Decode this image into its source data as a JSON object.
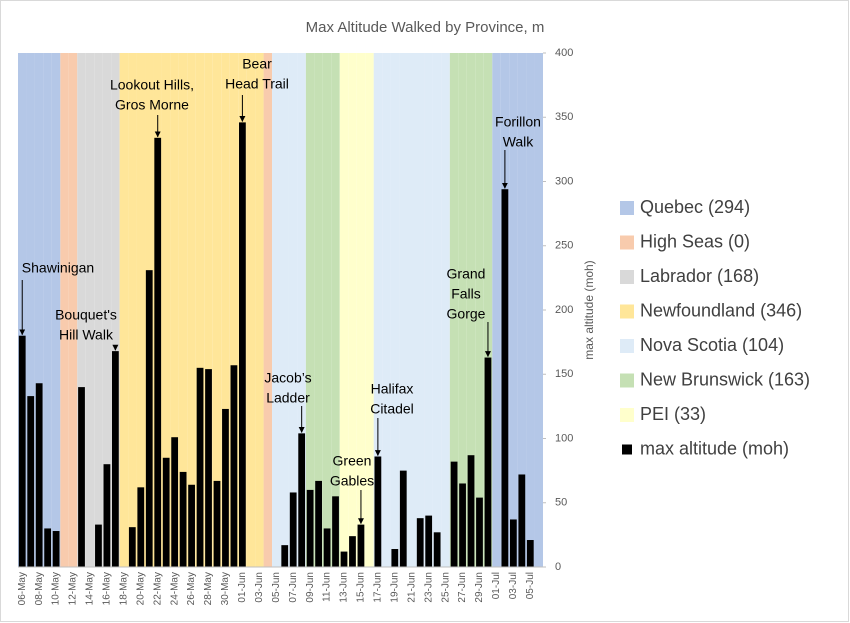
{
  "chart_data": {
    "type": "bar",
    "title": "Max Altitude Walked by Province, m",
    "categories": [
      "06-May",
      null,
      "08-May",
      null,
      "10-May",
      null,
      "12-May",
      null,
      "14-May",
      null,
      "16-May",
      null,
      "18-May",
      null,
      "20-May",
      null,
      "22-May",
      null,
      "24-May",
      null,
      "26-May",
      null,
      "28-May",
      null,
      "30-May",
      null,
      "01-Jun",
      null,
      "03-Jun",
      null,
      "05-Jun",
      null,
      "07-Jun",
      null,
      "09-Jun",
      null,
      "11-Jun",
      null,
      "13-Jun",
      null,
      "15-Jun",
      null,
      "17-Jun",
      null,
      "19-Jun",
      null,
      "21-Jun",
      null,
      "23-Jun",
      null,
      "25-Jun",
      null,
      "27-Jun",
      null,
      "29-Jun",
      null,
      "01-Jul",
      null,
      "03-Jul",
      null,
      "05-Jul",
      null
    ],
    "ylim": [
      0,
      400
    ],
    "y2lim": [
      0,
      400
    ],
    "y2ticks": [
      0,
      50,
      100,
      150,
      200,
      250,
      300,
      350,
      400
    ],
    "y2label": "max altitude (moh)",
    "series": [
      {
        "name": "Quebec (294)",
        "color": "#b4c7e7",
        "values": [
          400,
          400,
          400,
          400,
          400,
          null,
          null,
          null,
          null,
          null,
          null,
          null,
          null,
          null,
          null,
          null,
          null,
          null,
          null,
          null,
          null,
          null,
          null,
          null,
          null,
          null,
          null,
          null,
          null,
          null,
          null,
          null,
          null,
          null,
          null,
          null,
          null,
          null,
          null,
          null,
          null,
          null,
          null,
          null,
          null,
          null,
          null,
          null,
          null,
          null,
          null,
          null,
          null,
          null,
          null,
          null,
          400,
          400,
          400,
          400,
          400,
          400
        ]
      },
      {
        "name": "High Seas (0)",
        "color": "#f8cbad",
        "values": [
          null,
          null,
          null,
          null,
          null,
          400,
          400,
          null,
          null,
          null,
          null,
          null,
          null,
          null,
          null,
          null,
          null,
          null,
          null,
          null,
          null,
          null,
          null,
          null,
          null,
          null,
          null,
          null,
          null,
          400,
          null,
          null,
          null,
          null,
          null,
          null,
          null,
          null,
          null,
          null,
          null,
          null,
          null,
          null,
          null,
          null,
          null,
          null,
          null,
          null,
          null,
          null,
          null,
          null,
          null,
          null,
          null,
          null,
          null,
          null,
          null,
          null
        ]
      },
      {
        "name": "Labrador (168)",
        "color": "#d9d9d9",
        "values": [
          null,
          null,
          null,
          null,
          null,
          null,
          null,
          400,
          400,
          400,
          400,
          400,
          null,
          null,
          null,
          null,
          null,
          null,
          null,
          null,
          null,
          null,
          null,
          null,
          null,
          null,
          null,
          null,
          null,
          null,
          null,
          null,
          null,
          null,
          null,
          null,
          null,
          null,
          null,
          null,
          null,
          null,
          null,
          null,
          null,
          null,
          null,
          null,
          null,
          null,
          null,
          null,
          null,
          null,
          null,
          null,
          null,
          null,
          null,
          null,
          null,
          null
        ]
      },
      {
        "name": "Newfoundland (346)",
        "color": "#ffe699",
        "values": [
          null,
          null,
          null,
          null,
          null,
          null,
          null,
          null,
          null,
          null,
          null,
          null,
          400,
          400,
          400,
          400,
          400,
          400,
          400,
          400,
          400,
          400,
          400,
          400,
          400,
          400,
          400,
          400,
          400,
          null,
          null,
          null,
          null,
          null,
          null,
          null,
          null,
          null,
          null,
          null,
          null,
          null,
          null,
          null,
          null,
          null,
          null,
          null,
          null,
          null,
          null,
          null,
          null,
          null,
          null,
          null,
          null,
          null,
          null,
          null,
          null,
          null
        ]
      },
      {
        "name": "Nova Scotia (104)",
        "color": "#deebf7",
        "values": [
          null,
          null,
          null,
          null,
          null,
          null,
          null,
          null,
          null,
          null,
          null,
          null,
          null,
          null,
          null,
          null,
          null,
          null,
          null,
          null,
          null,
          null,
          null,
          null,
          null,
          null,
          null,
          null,
          null,
          null,
          400,
          400,
          400,
          400,
          null,
          null,
          null,
          null,
          null,
          null,
          null,
          null,
          400,
          400,
          400,
          400,
          400,
          400,
          400,
          400,
          400,
          null,
          null,
          null,
          null,
          null,
          null,
          null,
          null,
          null,
          null,
          null
        ]
      },
      {
        "name": "New Brunswick (163)",
        "color": "#c5e0b4",
        "values": [
          null,
          null,
          null,
          null,
          null,
          null,
          null,
          null,
          null,
          null,
          null,
          null,
          null,
          null,
          null,
          null,
          null,
          null,
          null,
          null,
          null,
          null,
          null,
          null,
          null,
          null,
          null,
          null,
          null,
          null,
          null,
          null,
          null,
          null,
          400,
          400,
          400,
          400,
          null,
          null,
          null,
          null,
          null,
          null,
          null,
          null,
          null,
          null,
          null,
          null,
          null,
          400,
          400,
          400,
          400,
          400,
          null,
          null,
          null,
          null,
          null,
          null
        ]
      },
      {
        "name": "PEI (33)",
        "color": "#ffffcc",
        "values": [
          null,
          null,
          null,
          null,
          null,
          null,
          null,
          null,
          null,
          null,
          null,
          null,
          null,
          null,
          null,
          null,
          null,
          null,
          null,
          null,
          null,
          null,
          null,
          null,
          null,
          null,
          null,
          null,
          null,
          null,
          null,
          null,
          null,
          null,
          null,
          null,
          null,
          null,
          400,
          400,
          400,
          400,
          null,
          null,
          null,
          null,
          null,
          null,
          null,
          null,
          null,
          null,
          null,
          null,
          null,
          null,
          null,
          null,
          null,
          null,
          null,
          null
        ]
      },
      {
        "name": "max altitude (moh)",
        "color": "#000000",
        "axis": "y2",
        "values": [
          180,
          133,
          143,
          30,
          28,
          0,
          0,
          140,
          0,
          33,
          80,
          168,
          0,
          31,
          62,
          231,
          334,
          85,
          101,
          74,
          64,
          155,
          154,
          67,
          123,
          157,
          346,
          0,
          0,
          0,
          0,
          17,
          58,
          104,
          60,
          67,
          30,
          55,
          12,
          24,
          33,
          0,
          86,
          0,
          14,
          75,
          0,
          38,
          40,
          27,
          0,
          82,
          65,
          87,
          54,
          163,
          0,
          294,
          37,
          72,
          21,
          0
        ]
      }
    ],
    "annotations": [
      {
        "lines": [
          "Shawinigan"
        ]
      },
      {
        "lines": [
          "Bouquet's",
          "Hill Walk"
        ]
      },
      {
        "lines": [
          "Lookout Hills,",
          "Gros Morne"
        ]
      },
      {
        "lines": [
          "Bear",
          "Head Trail"
        ]
      },
      {
        "lines": [
          "Jacob’s",
          "Ladder"
        ]
      },
      {
        "lines": [
          "Green",
          "Gables"
        ]
      },
      {
        "lines": [
          "Halifax",
          "Citadel"
        ]
      },
      {
        "lines": [
          "Grand",
          "Falls",
          "Gorge"
        ]
      },
      {
        "lines": [
          "Forillon",
          "Walk"
        ]
      }
    ],
    "legend": "right"
  }
}
